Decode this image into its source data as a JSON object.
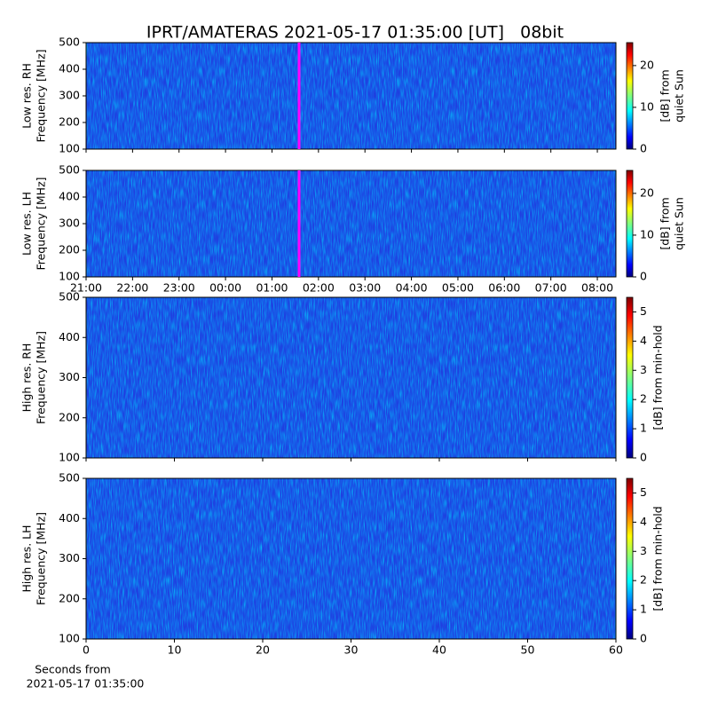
{
  "title": "IPRT/AMATERAS 2021-05-17 01:35:00 [UT]   08bit",
  "chart_data": [
    {
      "type": "heatmap",
      "ylabel": [
        "Low res. RH",
        "Frequency [MHz]"
      ],
      "xlim": [
        21,
        32.4
      ],
      "ylim": [
        100,
        500
      ],
      "yticks": [
        100,
        200,
        300,
        400,
        500
      ],
      "marker_x": 25.583,
      "marker_color": "#ff00ff",
      "colorbar": {
        "label": [
          "[dB] from",
          "quiet Sun"
        ],
        "lim": [
          0,
          25.5
        ],
        "ticks": [
          0,
          10,
          20
        ]
      }
    },
    {
      "type": "heatmap",
      "ylabel": [
        "Low res. LH",
        "Frequency [MHz]"
      ],
      "xlim": [
        21,
        32.4
      ],
      "ylim": [
        100,
        500
      ],
      "yticks": [
        100,
        200,
        300,
        400,
        500
      ],
      "xticks": [
        {
          "value": 21,
          "label": "21:00"
        },
        {
          "value": 22,
          "label": "22:00"
        },
        {
          "value": 23,
          "label": "23:00"
        },
        {
          "value": 24,
          "label": "00:00"
        },
        {
          "value": 25,
          "label": "01:00"
        },
        {
          "value": 26,
          "label": "02:00"
        },
        {
          "value": 27,
          "label": "03:00"
        },
        {
          "value": 28,
          "label": "04:00"
        },
        {
          "value": 29,
          "label": "05:00"
        },
        {
          "value": 30,
          "label": "06:00"
        },
        {
          "value": 31,
          "label": "07:00"
        },
        {
          "value": 32,
          "label": "08:00"
        }
      ],
      "marker_x": 25.583,
      "marker_color": "#ff00ff",
      "colorbar": {
        "label": [
          "[dB] from",
          "quiet Sun"
        ],
        "lim": [
          0,
          25.5
        ],
        "ticks": [
          0,
          10,
          20
        ]
      }
    },
    {
      "type": "heatmap",
      "ylabel": [
        "High res. RH",
        "Frequency [MHz]"
      ],
      "xlim": [
        0,
        60
      ],
      "ylim": [
        100,
        500
      ],
      "yticks": [
        100,
        200,
        300,
        400,
        500
      ],
      "colorbar": {
        "label": [
          "[dB] from min-hold"
        ],
        "lim": [
          0,
          5.5
        ],
        "ticks": [
          0,
          1,
          2,
          3,
          4,
          5
        ]
      }
    },
    {
      "type": "heatmap",
      "ylabel": [
        "High res. LH",
        "Frequency [MHz]"
      ],
      "xlim": [
        0,
        60
      ],
      "ylim": [
        100,
        500
      ],
      "yticks": [
        100,
        200,
        300,
        400,
        500
      ],
      "xticks": [
        0,
        10,
        20,
        30,
        40,
        50,
        60
      ],
      "xlabel": [
        "Seconds from",
        "2021-05-17 01:35:00"
      ],
      "colorbar": {
        "label": [
          "[dB] from min-hold"
        ],
        "lim": [
          0,
          5.5
        ],
        "ticks": [
          0,
          1,
          2,
          3,
          4,
          5
        ]
      }
    }
  ]
}
